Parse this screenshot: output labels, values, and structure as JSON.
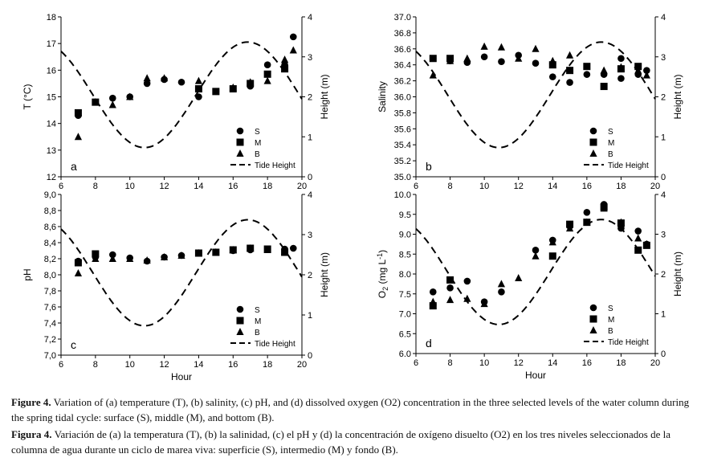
{
  "chart_data": [
    {
      "type": "scatter",
      "panel_label": "a",
      "xlabel": "",
      "ylabel": "T (°C)",
      "y2label": "Height (m)",
      "xlim": [
        6,
        20
      ],
      "ylim": [
        12,
        18
      ],
      "y2lim": [
        0,
        4
      ],
      "x_ticks": [
        "6",
        "8",
        "10",
        "12",
        "14",
        "16",
        "18",
        "20"
      ],
      "y_ticks": [
        "12",
        "13",
        "14",
        "15",
        "16",
        "17",
        "18"
      ],
      "y2_ticks": [
        "0",
        "1",
        "2",
        "3",
        "4"
      ],
      "series": [
        {
          "name": "S",
          "marker": "circle",
          "points": [
            [
              7,
              14.3
            ],
            [
              8,
              14.8
            ],
            [
              9,
              14.95
            ],
            [
              10,
              15.0
            ],
            [
              11,
              15.5
            ],
            [
              12,
              15.65
            ],
            [
              13,
              15.55
            ],
            [
              14,
              15.0
            ],
            [
              15,
              15.2
            ],
            [
              16,
              15.3
            ],
            [
              17,
              15.4
            ],
            [
              18,
              16.2
            ],
            [
              19,
              16.2
            ],
            [
              19.5,
              17.25
            ]
          ]
        },
        {
          "name": "M",
          "marker": "square",
          "points": [
            [
              7,
              14.4
            ],
            [
              8,
              14.8
            ],
            [
              14,
              15.3
            ],
            [
              15,
              15.2
            ],
            [
              16,
              15.3
            ],
            [
              17,
              15.5
            ],
            [
              18,
              15.85
            ],
            [
              19,
              16.05
            ]
          ]
        },
        {
          "name": "B",
          "marker": "triangle",
          "points": [
            [
              7,
              13.5
            ],
            [
              8,
              14.8
            ],
            [
              9,
              14.7
            ],
            [
              10,
              15.0
            ],
            [
              11,
              15.7
            ],
            [
              12,
              15.7
            ],
            [
              14,
              15.6
            ],
            [
              16,
              15.35
            ],
            [
              17,
              15.55
            ],
            [
              18,
              15.6
            ],
            [
              19,
              16.4
            ],
            [
              19.5,
              16.75
            ]
          ]
        }
      ],
      "tide": {
        "name": "Tide Height"
      },
      "legend": [
        "S",
        "M",
        "B",
        "Tide Height"
      ]
    },
    {
      "type": "scatter",
      "panel_label": "b",
      "xlabel": "",
      "ylabel": "Salinity",
      "y2label": "Height (m)",
      "xlim": [
        6,
        20
      ],
      "ylim": [
        35.0,
        37.0
      ],
      "y2lim": [
        0,
        4
      ],
      "x_ticks": [
        "6",
        "8",
        "10",
        "12",
        "14",
        "16",
        "18",
        "20"
      ],
      "y_ticks": [
        "35.0",
        "35.2",
        "35.4",
        "35.6",
        "35.8",
        "36.0",
        "36.2",
        "36.4",
        "36.6",
        "36.8",
        "37.0"
      ],
      "y2_ticks": [
        "0",
        "1",
        "2",
        "3",
        "4"
      ],
      "series": [
        {
          "name": "S",
          "marker": "circle",
          "points": [
            [
              7,
              36.48
            ],
            [
              8,
              36.45
            ],
            [
              9,
              36.43
            ],
            [
              10,
              36.5
            ],
            [
              11,
              36.44
            ],
            [
              12,
              36.52
            ],
            [
              13,
              36.42
            ],
            [
              14,
              36.25
            ],
            [
              15,
              36.18
            ],
            [
              16,
              36.28
            ],
            [
              17,
              36.28
            ],
            [
              18,
              36.48
            ],
            [
              18,
              36.23
            ],
            [
              19,
              36.28
            ],
            [
              19.5,
              36.33
            ]
          ]
        },
        {
          "name": "M",
          "marker": "square",
          "points": [
            [
              7,
              36.48
            ],
            [
              8,
              36.48
            ],
            [
              14,
              36.4
            ],
            [
              15,
              36.33
            ],
            [
              16,
              36.38
            ],
            [
              17,
              36.13
            ],
            [
              18,
              36.35
            ],
            [
              19,
              36.38
            ]
          ]
        },
        {
          "name": "B",
          "marker": "triangle",
          "points": [
            [
              7,
              36.27
            ],
            [
              8,
              36.45
            ],
            [
              9,
              36.48
            ],
            [
              10,
              36.63
            ],
            [
              11,
              36.62
            ],
            [
              12,
              36.48
            ],
            [
              13,
              36.6
            ],
            [
              14,
              36.45
            ],
            [
              15,
              36.52
            ],
            [
              17,
              36.33
            ],
            [
              18,
              36.37
            ],
            [
              19,
              36.33
            ],
            [
              19.5,
              36.27
            ]
          ]
        }
      ],
      "tide": {
        "name": "Tide Height"
      },
      "legend": [
        "S",
        "M",
        "B",
        "Tide Height"
      ]
    },
    {
      "type": "scatter",
      "panel_label": "c",
      "xlabel": "Hour",
      "ylabel": "pH",
      "y2label": "Height (m)",
      "xlim": [
        6,
        20
      ],
      "ylim": [
        7.0,
        9.0
      ],
      "y2lim": [
        0,
        4
      ],
      "x_ticks": [
        "6",
        "8",
        "10",
        "12",
        "14",
        "16",
        "18",
        "20"
      ],
      "y_ticks": [
        "7,0",
        "7,2",
        "7,4",
        "7,6",
        "7,8",
        "8,0",
        "8,2",
        "8,4",
        "8,6",
        "8,8",
        "9,0"
      ],
      "y2_ticks": [
        "0",
        "1",
        "2",
        "3",
        "4"
      ],
      "series": [
        {
          "name": "S",
          "marker": "circle",
          "points": [
            [
              7,
              8.17
            ],
            [
              8,
              8.22
            ],
            [
              9,
              8.25
            ],
            [
              10,
              8.21
            ],
            [
              11,
              8.17
            ],
            [
              12,
              8.22
            ],
            [
              13,
              8.24
            ],
            [
              14,
              8.27
            ],
            [
              15,
              8.28
            ],
            [
              16,
              8.3
            ],
            [
              17,
              8.31
            ],
            [
              19,
              8.32
            ],
            [
              19.5,
              8.33
            ]
          ]
        },
        {
          "name": "M",
          "marker": "square",
          "points": [
            [
              7,
              8.15
            ],
            [
              8,
              8.26
            ],
            [
              14,
              8.27
            ],
            [
              15,
              8.28
            ],
            [
              16,
              8.31
            ],
            [
              17,
              8.33
            ],
            [
              18,
              8.32
            ],
            [
              19,
              8.28
            ]
          ]
        },
        {
          "name": "B",
          "marker": "triangle",
          "points": [
            [
              7,
              8.02
            ],
            [
              8,
              8.2
            ],
            [
              9,
              8.2
            ],
            [
              10,
              8.2
            ],
            [
              11,
              8.18
            ],
            [
              12,
              8.22
            ],
            [
              13,
              8.24
            ],
            [
              14,
              8.27
            ],
            [
              15,
              8.28
            ],
            [
              16,
              8.31
            ],
            [
              17,
              8.33
            ],
            [
              18,
              8.31
            ],
            [
              19,
              8.29
            ]
          ]
        }
      ],
      "tide": {
        "name": "Tide Height"
      },
      "legend": [
        "S",
        "M",
        "B",
        "Tide Height"
      ]
    },
    {
      "type": "scatter",
      "panel_label": "d",
      "xlabel": "Hour",
      "ylabel": "O2 (mg L-1)",
      "ylabel_parts": {
        "base": "O",
        "sub": "2",
        "unit": " (mg L",
        "sup": "-1",
        "end": ")"
      },
      "y2label": "Height (m)",
      "xlim": [
        6,
        20
      ],
      "ylim": [
        6.0,
        10.0
      ],
      "y2lim": [
        0,
        4
      ],
      "x_ticks": [
        "6",
        "8",
        "10",
        "12",
        "14",
        "16",
        "18",
        "20"
      ],
      "y_ticks": [
        "6.0",
        "6.5",
        "7.0",
        "7.5",
        "8.0",
        "8.5",
        "9.0",
        "9.5",
        "10.0"
      ],
      "y2_ticks": [
        "0",
        "1",
        "2",
        "3",
        "4"
      ],
      "series": [
        {
          "name": "S",
          "marker": "circle",
          "points": [
            [
              7,
              7.55
            ],
            [
              8,
              7.65
            ],
            [
              9,
              7.82
            ],
            [
              10,
              7.3
            ],
            [
              11,
              7.55
            ],
            [
              13,
              8.6
            ],
            [
              14,
              8.85
            ],
            [
              15,
              9.2
            ],
            [
              16,
              9.55
            ],
            [
              17,
              9.75
            ],
            [
              18,
              9.15
            ],
            [
              19,
              9.08
            ],
            [
              19.5,
              8.75
            ]
          ]
        },
        {
          "name": "M",
          "marker": "square",
          "points": [
            [
              7,
              7.2
            ],
            [
              8,
              7.85
            ],
            [
              14,
              8.45
            ],
            [
              15,
              9.25
            ],
            [
              16,
              9.3
            ],
            [
              17,
              9.68
            ],
            [
              18,
              9.28
            ],
            [
              19,
              8.6
            ],
            [
              19.5,
              8.72
            ]
          ]
        },
        {
          "name": "B",
          "marker": "triangle",
          "points": [
            [
              7,
              7.3
            ],
            [
              8,
              7.35
            ],
            [
              9,
              7.38
            ],
            [
              10,
              7.25
            ],
            [
              11,
              7.75
            ],
            [
              12,
              7.9
            ],
            [
              13,
              8.45
            ],
            [
              14,
              8.8
            ],
            [
              15,
              9.15
            ],
            [
              16,
              9.3
            ],
            [
              17,
              9.65
            ],
            [
              18,
              9.3
            ],
            [
              19,
              8.9
            ],
            [
              19.5,
              8.75
            ]
          ]
        }
      ],
      "tide": {
        "name": "Tide Height"
      },
      "legend": [
        "S",
        "M",
        "B",
        "Tide Height"
      ]
    }
  ],
  "tide_model": {
    "mean_m": 2.05,
    "amplitude_m": 1.32,
    "low_tide_hour": 10.85,
    "high_tide_hour": 16.85
  },
  "caption": {
    "en_label": "Figure 4.",
    "en_text": " Variation of (a) temperature (T), (b) salinity, (c) pH, and (d) dissolved oxygen (O2) concentration in the three selected levels of the water column during the spring tidal cycle: surface (S), middle (M), and bottom (B).",
    "es_label": "Figura 4.",
    "es_text": " Variación de (a) la temperatura (T), (b) la salinidad, (c) el pH y (d) la concentración de oxígeno disuelto (O2) en los tres niveles seleccionados de la columna de agua durante un ciclo de marea viva: superficie (S), intermedio (M) y fondo (B)."
  }
}
